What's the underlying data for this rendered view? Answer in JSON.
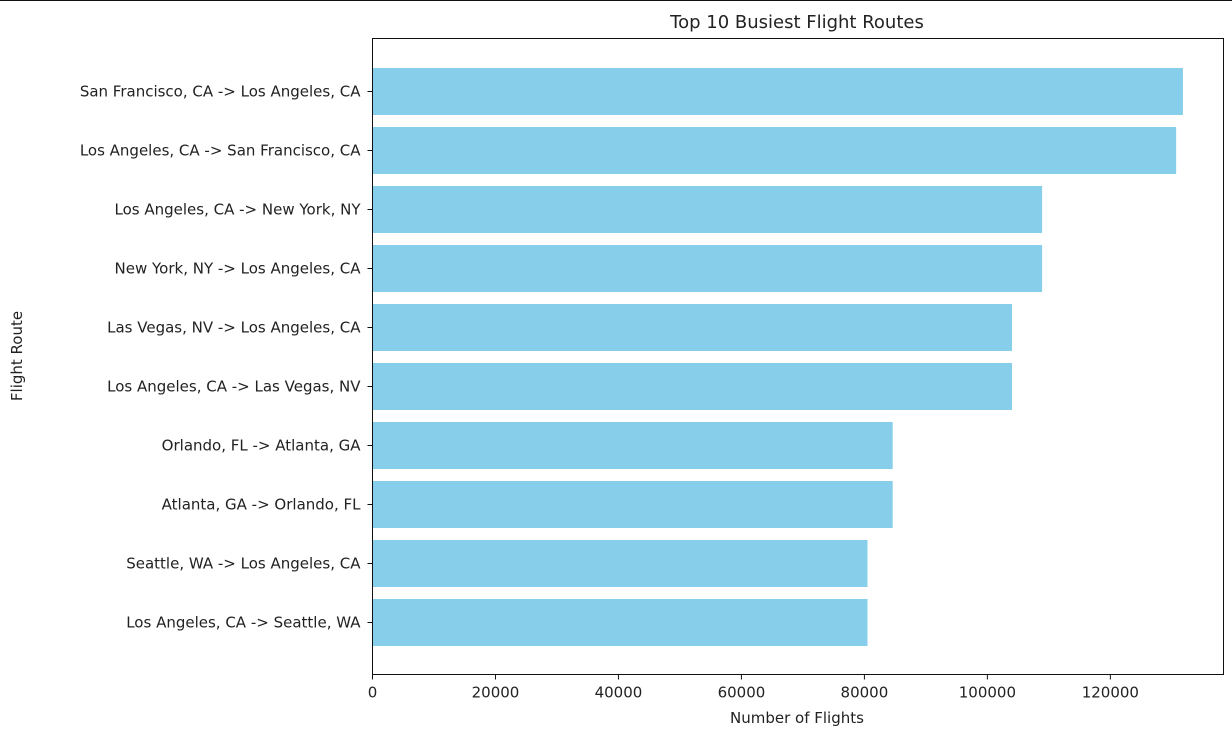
{
  "chart_data": {
    "type": "bar",
    "orientation": "horizontal",
    "title": "Top 10 Busiest Flight Routes",
    "xlabel": "Number of Flights",
    "ylabel": "Flight Route",
    "categories": [
      "San Francisco, CA -> Los Angeles, CA",
      "Los Angeles, CA -> San Francisco, CA",
      "Los Angeles, CA -> New York, NY",
      "New York, NY -> Los Angeles, CA",
      "Las Vegas, NV -> Los Angeles, CA",
      "Los Angeles, CA -> Las Vegas, NV",
      "Orlando, FL -> Atlanta, GA",
      "Atlanta, GA -> Orlando, FL",
      "Seattle, WA -> Los Angeles, CA",
      "Los Angeles, CA -> Seattle, WA"
    ],
    "values": [
      131800,
      130700,
      108900,
      108900,
      104000,
      104000,
      84600,
      84600,
      80500,
      80500
    ],
    "xlim": [
      0,
      138400
    ],
    "xticks": [
      0,
      20000,
      40000,
      60000,
      80000,
      100000,
      120000
    ],
    "xtick_labels": [
      "0",
      "20000",
      "40000",
      "60000",
      "80000",
      "100000",
      "120000"
    ],
    "bar_color": "#87ceeb",
    "grid": false
  }
}
